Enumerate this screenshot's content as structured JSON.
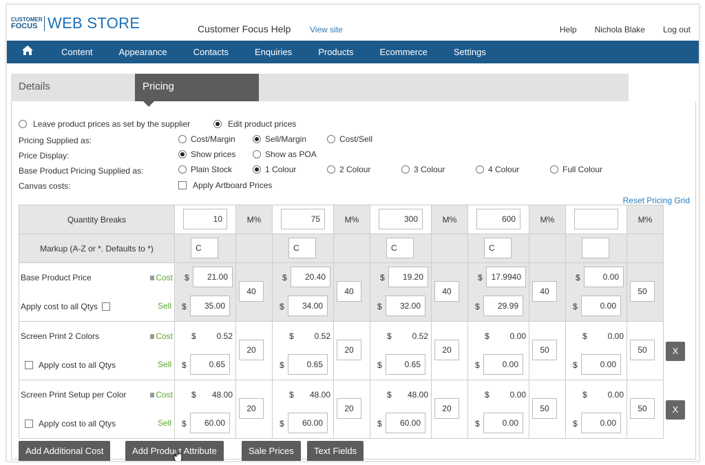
{
  "brand": {
    "small1": "CUSTOMER",
    "small2": "FOCUS",
    "big": "WEB STORE"
  },
  "header": {
    "site_name": "Customer Focus Help",
    "view_site": "View site",
    "help": "Help",
    "user": "Nichola Blake",
    "logout": "Log out"
  },
  "nav": {
    "items": [
      "Content",
      "Appearance",
      "Contacts",
      "Enquiries",
      "Products",
      "Ecommerce",
      "Settings"
    ]
  },
  "tabs": {
    "details": "Details",
    "pricing": "Pricing"
  },
  "options": {
    "leave": "Leave product prices as set by the supplier",
    "edit": "Edit product prices",
    "pricing_supplied": "Pricing Supplied as:",
    "cost_margin": "Cost/Margin",
    "sell_margin": "Sell/Margin",
    "cost_sell": "Cost/Sell",
    "price_display": "Price Display:",
    "show_prices": "Show prices",
    "show_poa": "Show as POA",
    "base_pricing": "Base Product Pricing Supplied as:",
    "plain": "Plain Stock",
    "c1": "1 Colour",
    "c2": "2 Colour",
    "c3": "3 Colour",
    "c4": "4 Colour",
    "full": "Full Colour",
    "canvas": "Canvas costs:",
    "artboard": "Apply Artboard Prices"
  },
  "reset": "Reset Pricing Grid",
  "grid": {
    "qty_label": "Quantity Breaks",
    "mpct": "M%",
    "markup_label": "Markup (A-Z or *. Defaults to *)",
    "qty": [
      "10",
      "75",
      "300",
      "600",
      ""
    ],
    "markup": [
      "C",
      "C",
      "C",
      "C",
      ""
    ],
    "dollar": "$",
    "cost": "Cost",
    "sell": "Sell",
    "apply": "Apply cost to all Qtys",
    "rows": [
      {
        "name": "Base Product Price",
        "cost": [
          "21.00",
          "20.40",
          "19.20",
          "17.9940",
          "0.00"
        ],
        "sell": [
          "35.00",
          "34.00",
          "32.00",
          "29.99",
          "0.00"
        ],
        "m": [
          "40",
          "40",
          "40",
          "40",
          "50"
        ]
      },
      {
        "name": "Screen Print 2 Colors",
        "cost": [
          "0.52",
          "0.52",
          "0.52",
          "0.00",
          "0.00"
        ],
        "sell": [
          "0.65",
          "0.65",
          "0.65",
          "0.00",
          "0.00"
        ],
        "m": [
          "20",
          "20",
          "20",
          "50",
          "50"
        ]
      },
      {
        "name": "Screen Print Setup per Color",
        "cost": [
          "48.00",
          "48.00",
          "48.00",
          "0.00",
          "0.00"
        ],
        "sell": [
          "60.00",
          "60.00",
          "60.00",
          "0.00",
          "0.00"
        ],
        "m": [
          "20",
          "20",
          "20",
          "50",
          "50"
        ]
      }
    ],
    "x": "X"
  },
  "buttons": {
    "add_cost": "Add Additional Cost",
    "add_attr": "Add Product Attribute",
    "sale": "Sale Prices",
    "text": "Text Fields"
  }
}
